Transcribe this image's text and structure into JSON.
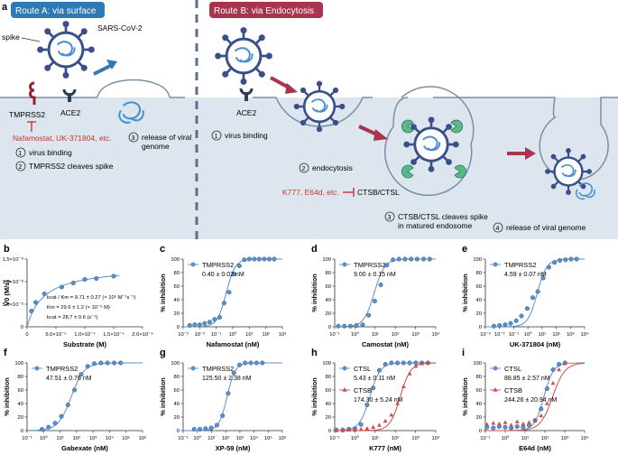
{
  "figure": {
    "panel_a": {
      "letter": "a",
      "route_a_title": "Route A: via surface",
      "route_b_title": "Route B: via Endocytosis",
      "spike_label": "spike",
      "virus_label": "SARS-CoV-2",
      "tmprss2_label": "TMPRSS2",
      "ace2_label_a": "ACE2",
      "ace2_label_b": "ACE2",
      "inhibitors_a": "Nafamostat, UK-371804, etc.",
      "release_a_line1": "release of viral",
      "release_a_line2": "genome",
      "release_a_num": "3",
      "step1_num": "1",
      "step1_text": "virus binding",
      "step2_num": "2",
      "step2_text": "TMPRSS2 cleaves spike",
      "b_step1_num": "1",
      "b_step1_text": "virus binding",
      "b_step2_num": "2",
      "b_step2_text": "endocytosis",
      "inhibitors_b": "K777, E64d, etc.",
      "ctsb_ctsl_label": "CTSB/CTSL",
      "b_step3_num": "3",
      "b_step3_line1": "CTSB/CTSL cleaves spike",
      "b_step3_line2": "in matured endosome",
      "b_step4_num": "4",
      "b_step4_text": "release of viral genome"
    },
    "colors": {
      "route_a": "#2f79b5",
      "route_b": "#a8344e",
      "series_circle": "#5b8fc8",
      "series_triangle": "#d24a4a",
      "inhibit_red": "#c0392b",
      "cell_bg": "#dde6ef"
    }
  },
  "chart_data": [
    {
      "panel": "b",
      "type": "scatter",
      "xlabel": "Substrate (M)",
      "ylabel": "V0 (M/s)",
      "x_ticks": [
        "0",
        "5.0×10⁻⁵",
        "1.0×10⁻⁴",
        "1.5×10⁻⁴",
        "2.0×10⁻⁴"
      ],
      "y_ticks": [
        "0",
        "5.0×10⁻⁹",
        "1.0×10⁻⁸",
        "1.5×10⁻⁸"
      ],
      "xlim": [
        0,
        0.0002
      ],
      "ylim": [
        0,
        1.5e-08
      ],
      "x": [
        7.5e-06,
        1.5e-05,
        3e-05,
        6e-05,
        8e-05,
        0.0001,
        0.00012,
        0.00015
      ],
      "y": [
        3.5e-09,
        5.4e-09,
        7.3e-09,
        8.8e-09,
        9.7e-09,
        1.05e-08,
        1.07e-08,
        1.12e-08
      ],
      "annotations": [
        "kcat / Km = 9.71 ± 0.27 (× 10⁵ M⁻¹s⁻¹)",
        "Km = 29.6 ± 1.2 (× 10⁻⁶ M)",
        "kcat = 28.7 ± 0.6 (s⁻¹)"
      ]
    },
    {
      "panel": "c",
      "type": "scatter",
      "xlabel": "Nafamostat (nM)",
      "ylabel": "% inhibition",
      "x_ticks": [
        "10⁻³",
        "10⁻²",
        "10⁻¹",
        "10⁰",
        "10¹",
        "10²",
        "10³"
      ],
      "xlog": [
        -3,
        3
      ],
      "y_ticks": [
        "0",
        "20",
        "40",
        "60",
        "80",
        "100"
      ],
      "ylim": [
        0,
        100
      ],
      "series": [
        {
          "name": "TMPRSS2",
          "label": "0.40 ± 0.02 nM",
          "marker": "circle",
          "ic50": 0.4,
          "hill": 1.6,
          "x": [
            0.0025,
            0.005,
            0.01,
            0.02,
            0.04,
            0.08,
            0.16,
            0.3,
            0.6,
            1.2,
            2.5,
            5,
            10,
            20,
            40,
            80,
            160,
            320
          ],
          "y": [
            2,
            3,
            3,
            5,
            7,
            11,
            14,
            35,
            51,
            78,
            90,
            99,
            100,
            100,
            100,
            100,
            100,
            100
          ]
        }
      ]
    },
    {
      "panel": "d",
      "type": "scatter",
      "xlabel": "Camostat (nM)",
      "ylabel": "% inhibition",
      "x_ticks": [
        "10⁻¹",
        "10⁰",
        "10¹",
        "10²",
        "10³",
        "10⁴"
      ],
      "xlog": [
        -1,
        4
      ],
      "y_ticks": [
        "0",
        "20",
        "40",
        "60",
        "80",
        "100"
      ],
      "ylim": [
        0,
        100
      ],
      "series": [
        {
          "name": "TMPRSS2",
          "label": "9.00 ± 0.15 nM",
          "marker": "circle",
          "ic50": 9,
          "hill": 1.7,
          "x": [
            0.15,
            0.3,
            0.6,
            1.2,
            2.4,
            4.8,
            9.6,
            19,
            38,
            77,
            150,
            300,
            600,
            1200,
            2500,
            5000
          ],
          "y": [
            1,
            1,
            1,
            2,
            3,
            17,
            38,
            62,
            91,
            99,
            100,
            100,
            100,
            100,
            100,
            100
          ]
        }
      ]
    },
    {
      "panel": "e",
      "type": "scatter",
      "xlabel": "UK-371804 (nM)",
      "ylabel": "% inhibition",
      "x_ticks": [
        "10⁻³",
        "10⁻²",
        "10⁻¹",
        "10⁰",
        "10¹",
        "10²",
        "10³",
        "10⁴"
      ],
      "xlog": [
        -3,
        4
      ],
      "y_ticks": [
        "0",
        "20",
        "40",
        "60",
        "80",
        "100"
      ],
      "ylim": [
        0,
        100
      ],
      "series": [
        {
          "name": "TMPRSS2",
          "label": "4.59 ± 0.07 nM",
          "marker": "circle",
          "ic50": 4.59,
          "hill": 1.3,
          "x": [
            0.004,
            0.01,
            0.025,
            0.06,
            0.15,
            0.35,
            0.9,
            2.2,
            5,
            12,
            30,
            75,
            180,
            450,
            1100,
            2700
          ],
          "y": [
            1,
            2,
            3,
            5,
            9,
            16,
            27,
            43,
            52,
            72,
            88,
            95,
            98,
            99,
            100,
            100
          ]
        }
      ]
    },
    {
      "panel": "f",
      "type": "scatter",
      "xlabel": "Gabexate (nM)",
      "ylabel": "% inhibition",
      "x_ticks": [
        "10⁻¹",
        "10⁰",
        "10¹",
        "10²",
        "10³",
        "10⁴",
        "10⁵",
        "10⁶"
      ],
      "xlog": [
        -1,
        6
      ],
      "y_ticks": [
        "0",
        "20",
        "40",
        "60",
        "80",
        "100"
      ],
      "ylim": [
        0,
        100
      ],
      "series": [
        {
          "name": "TMPRSS2",
          "label": "47.51 ± 0.76 nM",
          "marker": "circle",
          "ic50": 47.51,
          "hill": 1.1,
          "x": [
            0.8,
            2,
            5,
            12,
            30,
            75,
            190,
            470,
            1200,
            3000,
            7500,
            19000,
            47000
          ],
          "y": [
            2,
            5,
            11,
            21,
            38,
            60,
            83,
            95,
            99,
            100,
            100,
            100,
            100
          ]
        }
      ]
    },
    {
      "panel": "g",
      "type": "scatter",
      "xlabel": "XP-59 (nM)",
      "ylabel": "% inhibition",
      "x_ticks": [
        "10⁻¹",
        "10⁰",
        "10¹",
        "10²",
        "10³",
        "10⁴",
        "10⁵",
        "10⁶"
      ],
      "xlog": [
        -1,
        6
      ],
      "y_ticks": [
        "0",
        "20",
        "40",
        "60",
        "80",
        "100"
      ],
      "ylim": [
        0,
        100
      ],
      "series": [
        {
          "name": "TMPRSS2",
          "label": "125.50 ± 2.38 nM",
          "marker": "circle",
          "ic50": 125.5,
          "hill": 1.5,
          "x": [
            0.6,
            1.5,
            3.8,
            9.5,
            24,
            60,
            150,
            380,
            950,
            2400,
            6000,
            15000,
            38000
          ],
          "y": [
            2,
            2,
            3,
            4,
            8,
            22,
            55,
            85,
            97,
            100,
            100,
            100,
            100
          ]
        }
      ]
    },
    {
      "panel": "h",
      "type": "scatter",
      "xlabel": "K777 (nM)",
      "ylabel": "% inhibition",
      "x_ticks": [
        "10⁻¹",
        "10⁰",
        "10¹",
        "10²",
        "10³",
        "10⁴"
      ],
      "xlog": [
        -1,
        4
      ],
      "y_ticks": [
        "0",
        "20",
        "40",
        "60",
        "80",
        "100"
      ],
      "ylim": [
        0,
        100
      ],
      "series": [
        {
          "name": "CTSL",
          "label": "5.43 ± 0.11 nM",
          "marker": "circle",
          "ic50": 5.43,
          "hill": 1.7,
          "x": [
            0.12,
            0.25,
            0.5,
            1,
            2,
            4,
            8,
            16,
            32,
            64,
            128,
            256,
            512,
            1024,
            2048,
            4096
          ],
          "y": [
            1,
            1,
            2,
            3,
            9,
            38,
            63,
            89,
            98,
            100,
            100,
            100,
            100,
            100,
            100,
            100
          ]
        },
        {
          "name": "CTSB",
          "label": "174.30 ± 5.24 nM",
          "marker": "triangle",
          "ic50": 174.3,
          "hill": 1.7,
          "x": [
            0.12,
            0.25,
            0.5,
            1,
            2,
            4,
            8,
            16,
            32,
            64,
            128,
            256,
            512,
            1024,
            2048,
            4096
          ],
          "y": [
            0,
            0,
            1,
            1,
            2,
            3,
            5,
            8,
            14,
            23,
            40,
            65,
            84,
            95,
            99,
            100
          ]
        }
      ]
    },
    {
      "panel": "i",
      "type": "scatter",
      "xlabel": "E64d (nM)",
      "ylabel": "% inhibition",
      "x_ticks": [
        "10⁻¹",
        "10⁰",
        "10¹",
        "10²",
        "10³",
        "10⁴"
      ],
      "xlog": [
        -1,
        4
      ],
      "y_ticks": [
        "0",
        "20",
        "40",
        "60",
        "80",
        "100"
      ],
      "ylim": [
        0,
        100
      ],
      "series": [
        {
          "name": "CTSL",
          "label": "88.85 ± 2.57 nM",
          "marker": "circle",
          "ic50": 88.85,
          "hill": 1.8,
          "x": [
            0.12,
            0.25,
            0.5,
            1,
            2,
            4,
            8,
            16,
            32,
            64,
            128,
            256,
            512,
            1024
          ],
          "y": [
            5,
            4,
            6,
            5,
            4,
            6,
            5,
            8,
            15,
            32,
            62,
            90,
            98,
            100
          ]
        },
        {
          "name": "CTSB",
          "label": "244.26 ± 20.94 nM",
          "marker": "triangle",
          "ic50": 244.26,
          "hill": 1.4,
          "x": [
            0.12,
            0.25,
            0.5,
            1,
            2,
            4,
            8,
            16,
            32,
            64,
            128,
            256,
            512,
            1024
          ],
          "y": [
            9,
            11,
            10,
            12,
            8,
            13,
            10,
            12,
            15,
            22,
            40,
            70,
            90,
            99
          ]
        }
      ]
    }
  ]
}
